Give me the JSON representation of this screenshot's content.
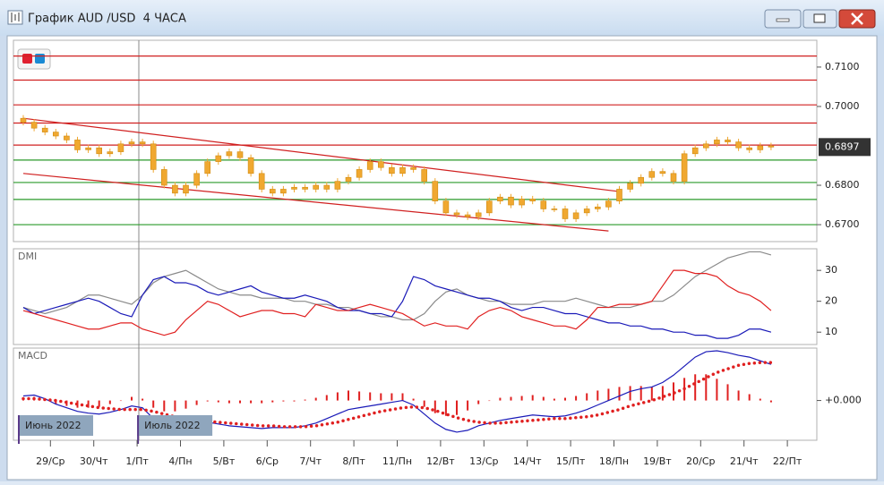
{
  "window": {
    "title": "График AUD /USD  4 ЧАСА"
  },
  "chart_data": [
    {
      "type": "candlestick",
      "color": "#f0a830",
      "categories": [
        null,
        null,
        null,
        "29/Ср",
        null,
        null,
        null,
        "30/Чт",
        null,
        null,
        null,
        "1/Пт",
        null,
        null,
        null,
        "4/Пн",
        null,
        null,
        null,
        "5/Вт",
        null,
        null,
        null,
        "6/Ср",
        null,
        null,
        null,
        "7/Чт",
        null,
        null,
        null,
        "8/Пт",
        null,
        null,
        null,
        "11/Пн",
        null,
        null,
        null,
        "12/Вт",
        null,
        null,
        null,
        "13/Ср",
        null,
        null,
        null,
        "14/Чт",
        null,
        null,
        null,
        "15/Пт",
        null,
        null,
        null,
        "18/Пн",
        null,
        null,
        null,
        "19/Вт",
        null,
        null,
        null,
        "20/Ср",
        null,
        null,
        null,
        "21/Чт",
        null,
        null,
        null,
        "22/Пт"
      ],
      "open": [
        0.697,
        0.696,
        0.6945,
        0.6935,
        0.6925,
        0.6915,
        0.689,
        0.6895,
        0.688,
        0.6885,
        0.6905,
        0.691,
        0.6905,
        0.684,
        0.68,
        0.678,
        0.68,
        0.683,
        0.686,
        0.6875,
        0.6885,
        0.687,
        0.683,
        0.679,
        0.678,
        0.679,
        0.6795,
        0.679,
        0.68,
        0.679,
        0.681,
        0.682,
        0.684,
        0.686,
        0.6845,
        0.683,
        0.6845,
        0.684,
        0.681,
        0.676,
        0.673,
        0.6725,
        0.672,
        0.673,
        0.676,
        0.677,
        0.675,
        0.6765,
        0.676,
        0.674,
        0.674,
        0.6715,
        0.673,
        0.674,
        0.6745,
        0.676,
        0.679,
        0.6805,
        0.682,
        0.6835,
        0.683,
        0.681,
        0.688,
        0.6895,
        0.6905,
        0.6915,
        0.691,
        0.6895,
        0.689,
        0.69,
        null,
        null
      ],
      "high": [
        0.6978,
        0.6968,
        0.6953,
        0.6943,
        0.6933,
        0.6923,
        0.6903,
        0.6903,
        0.6893,
        0.6913,
        0.6918,
        0.6918,
        0.6913,
        0.6848,
        0.6808,
        0.6808,
        0.6838,
        0.6868,
        0.6883,
        0.6893,
        0.6893,
        0.6878,
        0.6838,
        0.6798,
        0.6798,
        0.6803,
        0.6803,
        0.6808,
        0.6808,
        0.6818,
        0.6828,
        0.6848,
        0.6868,
        0.6868,
        0.6853,
        0.6853,
        0.6853,
        0.6848,
        0.6818,
        0.6768,
        0.6738,
        0.6733,
        0.6738,
        0.6768,
        0.6778,
        0.6778,
        0.6773,
        0.6773,
        0.6768,
        0.6748,
        0.6748,
        0.6738,
        0.6748,
        0.6753,
        0.6768,
        0.6798,
        0.6813,
        0.6828,
        0.6843,
        0.6843,
        0.6838,
        0.6888,
        0.6903,
        0.6913,
        0.6923,
        0.6923,
        0.6918,
        0.6903,
        0.6908,
        0.6908,
        null,
        null
      ],
      "low": [
        0.6952,
        0.6937,
        0.6927,
        0.6917,
        0.6907,
        0.6882,
        0.6882,
        0.6872,
        0.6872,
        0.6877,
        0.6897,
        0.6897,
        0.6832,
        0.6792,
        0.6772,
        0.6772,
        0.6792,
        0.6822,
        0.6852,
        0.6867,
        0.6862,
        0.6822,
        0.6782,
        0.6772,
        0.6772,
        0.6782,
        0.6782,
        0.6782,
        0.6782,
        0.6782,
        0.6802,
        0.6812,
        0.6832,
        0.6837,
        0.6822,
        0.6822,
        0.6832,
        0.6802,
        0.6752,
        0.6722,
        0.6717,
        0.6712,
        0.6712,
        0.6722,
        0.6752,
        0.6742,
        0.6742,
        0.6752,
        0.6732,
        0.6732,
        0.6707,
        0.6707,
        0.6722,
        0.6732,
        0.6737,
        0.6752,
        0.6782,
        0.6797,
        0.6812,
        0.6822,
        0.6802,
        0.6802,
        0.6872,
        0.6887,
        0.6897,
        0.6902,
        0.6887,
        0.6882,
        0.6882,
        0.6889,
        null,
        null
      ],
      "close": [
        0.696,
        0.6945,
        0.6935,
        0.6925,
        0.6915,
        0.689,
        0.6895,
        0.688,
        0.6885,
        0.6905,
        0.691,
        0.6905,
        0.684,
        0.68,
        0.678,
        0.68,
        0.683,
        0.686,
        0.6875,
        0.6885,
        0.687,
        0.683,
        0.679,
        0.678,
        0.679,
        0.6795,
        0.679,
        0.68,
        0.679,
        0.681,
        0.682,
        0.684,
        0.686,
        0.6845,
        0.683,
        0.6845,
        0.684,
        0.681,
        0.676,
        0.673,
        0.6725,
        0.672,
        0.673,
        0.676,
        0.677,
        0.675,
        0.6765,
        0.676,
        0.674,
        0.674,
        0.6715,
        0.673,
        0.674,
        0.6745,
        0.676,
        0.679,
        0.6805,
        0.682,
        0.6835,
        0.683,
        0.681,
        0.688,
        0.6895,
        0.6905,
        0.6915,
        0.691,
        0.6895,
        0.689,
        0.69,
        0.6897,
        null,
        null
      ],
      "ylim": [
        0.6657,
        0.7168
      ],
      "yticks": [
        {
          "value": 0.71,
          "label": "0.7100"
        },
        {
          "value": 0.7,
          "label": "0.7000"
        },
        {
          "value": 0.68,
          "label": "0.6800"
        },
        {
          "value": 0.67,
          "label": "0.6700"
        }
      ],
      "last_price": {
        "value": 0.6897,
        "label": "0.6897"
      },
      "levels": [
        {
          "value": 0.7128,
          "color": "#d02020"
        },
        {
          "value": 0.7067,
          "color": "#d02020"
        },
        {
          "value": 0.7004,
          "color": "#d02020"
        },
        {
          "value": 0.6958,
          "color": "#d02020"
        },
        {
          "value": 0.6902,
          "color": "#d02020"
        },
        {
          "value": 0.6864,
          "color": "#2a9a2a"
        },
        {
          "value": 0.6807,
          "color": "#2a9a2a"
        },
        {
          "value": 0.6764,
          "color": "#2a9a2a"
        },
        {
          "value": 0.67,
          "color": "#2a9a2a"
        }
      ],
      "trend_lines": [
        {
          "x": [
            0,
            55
          ],
          "y": [
            0.697,
            0.6784
          ],
          "color": "#d02020"
        },
        {
          "x": [
            0,
            54
          ],
          "y": [
            0.683,
            0.6684
          ],
          "color": "#d02020"
        }
      ]
    },
    {
      "type": "line",
      "title": "DMI",
      "ylim": [
        6,
        37
      ],
      "yticks": [
        30,
        20,
        10
      ],
      "series": [
        {
          "color": "#8a8a8a",
          "values": [
            18,
            17,
            16,
            17,
            18,
            20,
            22,
            22,
            21,
            20,
            19,
            22,
            26,
            28,
            29,
            30,
            28,
            26,
            24,
            23,
            22,
            22,
            21,
            21,
            21,
            20,
            20,
            19,
            19,
            18,
            18,
            17,
            16,
            15,
            15,
            14,
            14,
            16,
            20,
            23,
            24,
            22,
            21,
            20,
            20,
            19,
            19,
            19,
            20,
            20,
            20,
            21,
            20,
            19,
            18,
            18,
            18,
            19,
            20,
            20,
            22,
            25,
            28,
            30,
            32,
            34,
            35,
            36,
            36,
            35,
            null,
            null
          ]
        },
        {
          "color": "#1a1ab8",
          "values": [
            18,
            16,
            17,
            18,
            19,
            20,
            21,
            20,
            18,
            16,
            15,
            22,
            27,
            28,
            26,
            26,
            25,
            23,
            22,
            23,
            24,
            25,
            23,
            22,
            21,
            21,
            22,
            21,
            20,
            18,
            17,
            17,
            16,
            16,
            15,
            20,
            28,
            27,
            25,
            24,
            23,
            22,
            21,
            21,
            20,
            18,
            17,
            18,
            18,
            17,
            16,
            16,
            15,
            14,
            13,
            13,
            12,
            12,
            11,
            11,
            10,
            10,
            9,
            9,
            8,
            8,
            9,
            11,
            11,
            10,
            null,
            null
          ]
        },
        {
          "color": "#e02020",
          "values": [
            17,
            16,
            15,
            14,
            13,
            12,
            11,
            11,
            12,
            13,
            13,
            11,
            10,
            9,
            10,
            14,
            17,
            20,
            19,
            17,
            15,
            16,
            17,
            17,
            16,
            16,
            15,
            19,
            18,
            17,
            17,
            18,
            19,
            18,
            17,
            16,
            14,
            12,
            13,
            12,
            12,
            11,
            15,
            17,
            18,
            17,
            15,
            14,
            13,
            12,
            12,
            11,
            14,
            18,
            18,
            19,
            19,
            19,
            20,
            25,
            30,
            30,
            29,
            29,
            28,
            25,
            23,
            22,
            20,
            17,
            null,
            null
          ]
        }
      ]
    },
    {
      "type": "macd",
      "title": "MACD",
      "ylim": [
        -0.0044,
        0.0058
      ],
      "yticks": [
        {
          "value": 0,
          "label": "+0.000"
        }
      ],
      "annotations": [
        {
          "text": "Июнь 2022",
          "x": 0
        },
        {
          "text": "Июль 2022",
          "x": 11
        }
      ],
      "series": [
        {
          "style": "bar",
          "color": "#e02020",
          "values": [
            0.0003,
            0.0004,
            0.0001,
            -0.0004,
            -0.0006,
            -0.0008,
            -0.0008,
            -0.0007,
            -0.0004,
            0.0,
            0.0004,
            0.0002,
            -0.0008,
            -0.0012,
            -0.0012,
            -0.0009,
            -0.0005,
            -0.0001,
            -0.0002,
            -0.0003,
            -0.0003,
            -0.0003,
            -0.0003,
            -0.0002,
            -0.0001,
            -0.0001,
            0.0001,
            0.0003,
            0.0006,
            0.0009,
            0.0011,
            0.001,
            0.0009,
            0.0008,
            0.0008,
            0.0008,
            0.0002,
            -0.0007,
            -0.0014,
            -0.0017,
            -0.0016,
            -0.0011,
            -0.0004,
            0.0,
            0.0003,
            0.0004,
            0.0005,
            0.0006,
            0.0004,
            0.0002,
            0.0003,
            0.0005,
            0.0008,
            0.0011,
            0.0013,
            0.0015,
            0.0016,
            0.0016,
            0.0015,
            0.0016,
            0.002,
            0.0025,
            0.0029,
            0.0029,
            0.0024,
            0.0018,
            0.0011,
            0.0007,
            0.0002,
            -0.0002,
            null,
            null
          ]
        },
        {
          "style": "line",
          "color": "#1a1ab8",
          "values": [
            0.0005,
            0.0006,
            0.0002,
            -0.0004,
            -0.0008,
            -0.0012,
            -0.0014,
            -0.0015,
            -0.0013,
            -0.001,
            -0.0006,
            -0.0008,
            -0.002,
            -0.0027,
            -0.003,
            -0.0029,
            -0.0027,
            -0.0024,
            -0.0026,
            -0.0028,
            -0.0029,
            -0.003,
            -0.0031,
            -0.003,
            -0.003,
            -0.003,
            -0.0028,
            -0.0025,
            -0.002,
            -0.0015,
            -0.001,
            -0.0008,
            -0.0006,
            -0.0004,
            -0.0002,
            0.0,
            -0.0005,
            -0.0015,
            -0.0025,
            -0.0032,
            -0.0035,
            -0.0033,
            -0.0028,
            -0.0025,
            -0.0022,
            -0.002,
            -0.0018,
            -0.0016,
            -0.0017,
            -0.0018,
            -0.0017,
            -0.0014,
            -0.001,
            -0.0005,
            0.0,
            0.0005,
            0.001,
            0.0013,
            0.0015,
            0.002,
            0.0028,
            0.0038,
            0.0048,
            0.0054,
            0.0055,
            0.0053,
            0.005,
            0.0048,
            0.0044,
            0.004,
            null,
            null
          ]
        },
        {
          "style": "dotted",
          "color": "#e02020",
          "values": [
            0.0002,
            0.0002,
            0.0001,
            0.0,
            -0.0002,
            -0.0004,
            -0.0006,
            -0.0008,
            -0.0009,
            -0.001,
            -0.001,
            -0.001,
            -0.0012,
            -0.0015,
            -0.0018,
            -0.002,
            -0.0022,
            -0.0023,
            -0.0024,
            -0.0025,
            -0.0026,
            -0.0027,
            -0.0028,
            -0.0028,
            -0.0029,
            -0.0029,
            -0.0029,
            -0.0028,
            -0.0026,
            -0.0024,
            -0.0021,
            -0.0018,
            -0.0015,
            -0.0012,
            -0.001,
            -0.0008,
            -0.0007,
            -0.0008,
            -0.0011,
            -0.0015,
            -0.0019,
            -0.0022,
            -0.0024,
            -0.0025,
            -0.0025,
            -0.0024,
            -0.0023,
            -0.0022,
            -0.0021,
            -0.002,
            -0.002,
            -0.0019,
            -0.0018,
            -0.0016,
            -0.0013,
            -0.001,
            -0.0006,
            -0.0003,
            0.0,
            0.0004,
            0.0008,
            0.0013,
            0.0019,
            0.0025,
            0.0031,
            0.0035,
            0.0039,
            0.0041,
            0.0042,
            0.0042,
            null,
            null
          ]
        }
      ]
    }
  ]
}
